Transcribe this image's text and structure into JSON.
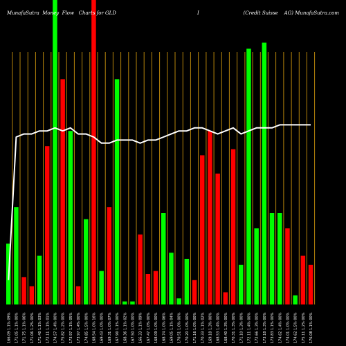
{
  "header": {
    "left": "MunafaSutra  Money  Flow   Charts for GLD",
    "middle": "I",
    "right": "(Credit Suisse    AG) MunafaSutra.com"
  },
  "colors": {
    "background": "#000000",
    "up": "#00ff00",
    "down": "#ff0000",
    "grid": "#b8860b",
    "price_line": "#ffffff",
    "label": "#ffffff"
  },
  "chart_data": {
    "type": "bar",
    "grid": true,
    "ylim": [
      0,
      100
    ],
    "bars": [
      {
        "label": "166.09 1.1% 09%",
        "value": 20,
        "direction": "up"
      },
      {
        "label": "171.05 1.1% 00%",
        "value": 32,
        "direction": "up"
      },
      {
        "label": "171.75 1.1% 06%",
        "value": 9,
        "direction": "down"
      },
      {
        "label": "171.06 1.2% 00%",
        "value": 6,
        "direction": "down"
      },
      {
        "label": "171.40 1.1% 03%",
        "value": 16,
        "direction": "up"
      },
      {
        "label": "172.11 1.1% 01%",
        "value": 52,
        "direction": "down"
      },
      {
        "label": "174.57 1.4% 00%",
        "value": 100,
        "direction": "up"
      },
      {
        "label": "175.82 1.2% 00%",
        "value": 74,
        "direction": "down"
      },
      {
        "label": "173.97 1.1% 05%",
        "value": 57,
        "direction": "up"
      },
      {
        "label": "173.97 1.4% 00%",
        "value": 6,
        "direction": "down"
      },
      {
        "label": "174.85 1.5% 00%",
        "value": 28,
        "direction": "up"
      },
      {
        "label": "168.54 1.0% 16%",
        "value": 100,
        "direction": "down"
      },
      {
        "label": "169.43 1.0% 00%",
        "value": 11,
        "direction": "up"
      },
      {
        "label": "169.31 1.0% 07%",
        "value": 32,
        "direction": "down"
      },
      {
        "label": "167.90 1.1% 00%",
        "value": 74,
        "direction": "up"
      },
      {
        "label": "168.36 1.1% 02%",
        "value": 1,
        "direction": "up"
      },
      {
        "label": "167.50 1.0% 00%",
        "value": 1,
        "direction": "up"
      },
      {
        "label": "166.33 1.1% 09%",
        "value": 23,
        "direction": "down"
      },
      {
        "label": "167.47 1.0% 00%",
        "value": 10,
        "direction": "down"
      },
      {
        "label": "168.09 1.0% 00%",
        "value": 11,
        "direction": "down"
      },
      {
        "label": "168.74 1.0% 06%",
        "value": 30,
        "direction": "up"
      },
      {
        "label": "169.05 1.1% 04%",
        "value": 17,
        "direction": "up"
      },
      {
        "label": "170.51 1.0% 00%",
        "value": 2,
        "direction": "up"
      },
      {
        "label": "170.20 1.0% 00%",
        "value": 15,
        "direction": "up"
      },
      {
        "label": "171.16 1.0% 00%",
        "value": 8,
        "direction": "down"
      },
      {
        "label": "170.33 1.1% 02%",
        "value": 49,
        "direction": "down"
      },
      {
        "label": "169.18 1.3% 00%",
        "value": 57,
        "direction": "down"
      },
      {
        "label": "168.53 1.4% 00%",
        "value": 43,
        "direction": "down"
      },
      {
        "label": "168.40 1.3% 00%",
        "value": 4,
        "direction": "down"
      },
      {
        "label": "170.31 1.3% 00%",
        "value": 51,
        "direction": "down"
      },
      {
        "label": "171.10 1.3% 00%",
        "value": 13,
        "direction": "up"
      },
      {
        "label": "172.11 1.4% 00%",
        "value": 84,
        "direction": "up"
      },
      {
        "label": "172.66 1.3% 00%",
        "value": 25,
        "direction": "up"
      },
      {
        "label": "173.18 1.3% 00%",
        "value": 86,
        "direction": "up"
      },
      {
        "label": "173.83 1.1% 00%",
        "value": 30,
        "direction": "up"
      },
      {
        "label": "174.62 1.4% 00%",
        "value": 30,
        "direction": "up"
      },
      {
        "label": "174.01 1.0% 00%",
        "value": 25,
        "direction": "down"
      },
      {
        "label": "174.62 1.5% 00%",
        "value": 3,
        "direction": "up"
      },
      {
        "label": "175.11 1.2% 00%",
        "value": 16,
        "direction": "down"
      },
      {
        "label": "176.08 1.1% 00%",
        "value": 13,
        "direction": "down"
      }
    ],
    "price_line": [
      8,
      55,
      56,
      56,
      57,
      57,
      58,
      57,
      58,
      56,
      56,
      55,
      53,
      53,
      54,
      54,
      54,
      53,
      54,
      54,
      55,
      56,
      57,
      57,
      58,
      58,
      57,
      56,
      57,
      58,
      56,
      57,
      58,
      58,
      58,
      59,
      59,
      59,
      59,
      59
    ]
  }
}
